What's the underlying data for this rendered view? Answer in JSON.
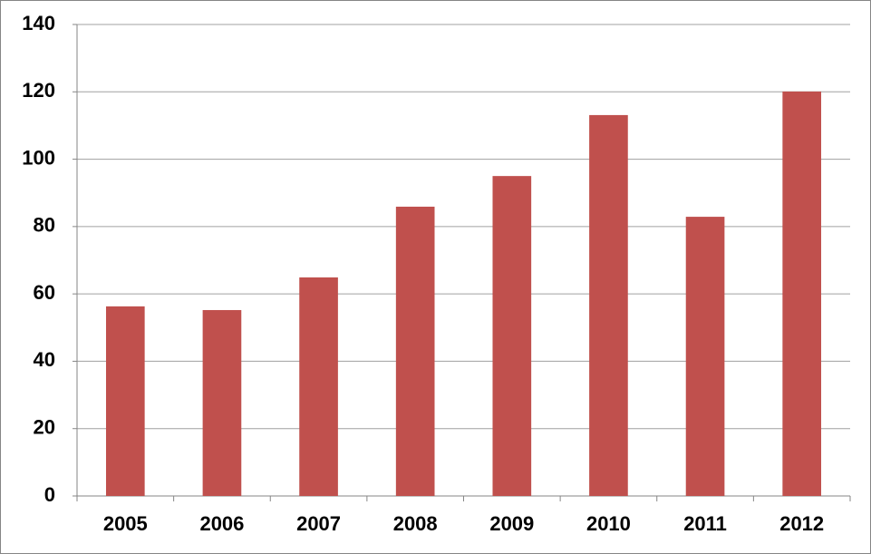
{
  "chart_data": {
    "type": "bar",
    "categories": [
      "2005",
      "2006",
      "2007",
      "2008",
      "2009",
      "2010",
      "2011",
      "2012"
    ],
    "values": [
      56.3,
      55.2,
      64.9,
      85.9,
      95,
      113.1,
      82.9,
      120.1
    ],
    "color": "#c0504d",
    "ylim": [
      0,
      140
    ],
    "yticks": [
      0,
      20,
      40,
      60,
      80,
      100,
      120,
      140
    ],
    "grid": true
  }
}
